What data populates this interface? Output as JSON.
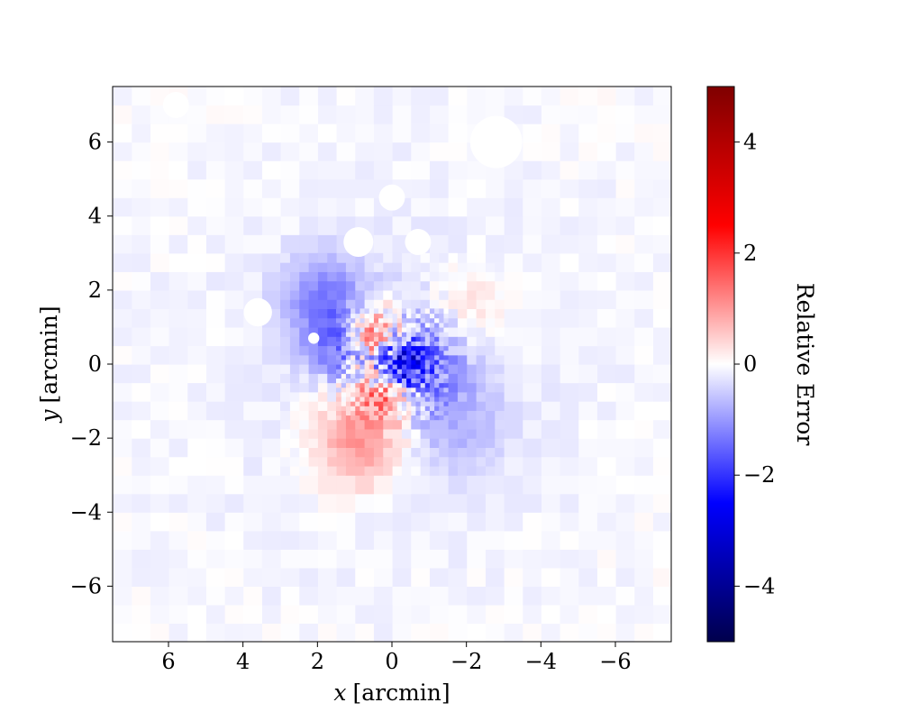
{
  "chart_data": {
    "type": "heatmap",
    "title": "",
    "xlabel_var": "x",
    "xlabel_unit": "[arcmin]",
    "ylabel_var": "y",
    "ylabel_unit": "[arcmin]",
    "xlim": [
      7.5,
      -7.5
    ],
    "ylim": [
      -7.5,
      7.5
    ],
    "x_ticks": [
      6,
      4,
      2,
      0,
      -2,
      -4,
      -6
    ],
    "x_tick_labels": [
      "6",
      "4",
      "2",
      "0",
      "−2",
      "−4",
      "−6"
    ],
    "y_ticks": [
      6,
      4,
      2,
      0,
      -2,
      -4,
      -6
    ],
    "y_tick_labels": [
      "6",
      "4",
      "2",
      "0",
      "−2",
      "−4",
      "−6"
    ],
    "colorbar": {
      "label": "Relative Error",
      "colormap": "seismic",
      "range": [
        -5,
        5
      ],
      "ticks": [
        4,
        2,
        0,
        -2,
        -4
      ],
      "tick_labels": [
        "4",
        "2",
        "0",
        "−2",
        "−4"
      ],
      "colors": [
        "#00004c",
        "#0000ff",
        "#ffffff",
        "#ff0000",
        "#7f0000"
      ]
    },
    "features": [
      {
        "x": 0.5,
        "y": 0.8,
        "value": 1.8,
        "spread": 0.55
      },
      {
        "x": 0.8,
        "y": -2.0,
        "value": 1.3,
        "spread": 0.9
      },
      {
        "x": 0.2,
        "y": -0.7,
        "value": 1.4,
        "spread": 0.5
      },
      {
        "x": -0.2,
        "y": 0.0,
        "value": -2.2,
        "spread": 0.45
      },
      {
        "x": 1.8,
        "y": 1.8,
        "value": -1.1,
        "spread": 0.8
      },
      {
        "x": 1.5,
        "y": 0.5,
        "value": -1.2,
        "spread": 0.6
      },
      {
        "x": -0.8,
        "y": 0.3,
        "value": -0.8,
        "spread": 0.9
      },
      {
        "x": -1.5,
        "y": -1.5,
        "value": -0.6,
        "spread": 1.1
      },
      {
        "x": -2.0,
        "y": 1.5,
        "value": 0.5,
        "spread": 0.8
      }
    ],
    "masked_regions": [
      {
        "x": -2.8,
        "y": 6.0,
        "r": 0.7
      },
      {
        "x": 0.0,
        "y": 4.5,
        "r": 0.35
      },
      {
        "x": 0.9,
        "y": 3.3,
        "r": 0.4
      },
      {
        "x": -0.7,
        "y": 3.3,
        "r": 0.35
      },
      {
        "x": 3.6,
        "y": 1.4,
        "r": 0.38
      },
      {
        "x": 5.8,
        "y": 7.0,
        "r": 0.35
      },
      {
        "x": 2.1,
        "y": 0.7,
        "r": 0.15
      }
    ]
  }
}
